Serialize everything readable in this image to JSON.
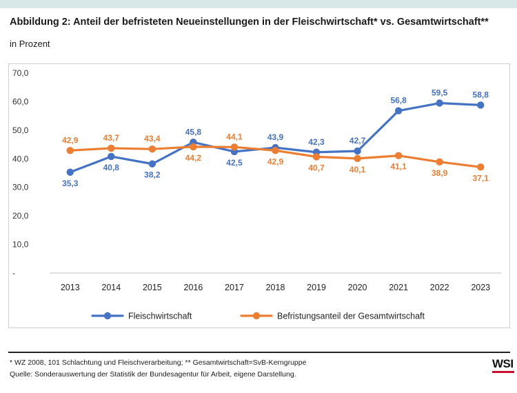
{
  "header": {
    "title": "Abbildung 2: Anteil der befristeten Neueinstellungen in der Fleischwirtschaft* vs. Gesamtwirtschaft**",
    "subtitle": "in Prozent"
  },
  "footer": {
    "note_1": "* WZ 2008, 101 Schlachtung und Fleischverarbeitung; ** Gesamtwirtschaft=SvB-Kerngruppe",
    "note_2": "Quelle: Sonderauswertung der Statistik der Bundesagentur für Arbeit, eigene Darstellung.",
    "brand": "WSI"
  },
  "colors": {
    "fleisch": "#4472c4",
    "gesamt": "#ed7d31",
    "brand_accent": "#c8102e"
  },
  "chart_data": {
    "type": "line",
    "categories": [
      "2013",
      "2014",
      "2015",
      "2016",
      "2017",
      "2018",
      "2019",
      "2020",
      "2021",
      "2022",
      "2023"
    ],
    "y_ticks": [
      "-",
      "10,0",
      "20,0",
      "30,0",
      "40,0",
      "50,0",
      "60,0",
      "70,0"
    ],
    "ylim": [
      0,
      70
    ],
    "grid": false,
    "legend_position": "bottom",
    "series": [
      {
        "name": "Fleischwirtschaft",
        "color": "#4472c4",
        "values": [
          35.3,
          40.8,
          38.2,
          45.8,
          42.5,
          43.9,
          42.3,
          42.7,
          56.8,
          59.5,
          58.8
        ],
        "labels": [
          "35,3",
          "40,8",
          "38,2",
          "45,8",
          "42,5",
          "43,9",
          "42,3",
          "42,7",
          "56,8",
          "59,5",
          "58,8"
        ]
      },
      {
        "name": "Befristungsanteil der Gesamtwirtschaft",
        "color": "#ed7d31",
        "values": [
          42.9,
          43.7,
          43.4,
          44.2,
          44.1,
          42.9,
          40.7,
          40.1,
          41.1,
          38.9,
          37.1
        ],
        "labels": [
          "42,9",
          "43,7",
          "43,4",
          "44,2",
          "44,1",
          "42,9",
          "40,7",
          "40,1",
          "41,1",
          "38,9",
          "37,1"
        ]
      }
    ]
  }
}
